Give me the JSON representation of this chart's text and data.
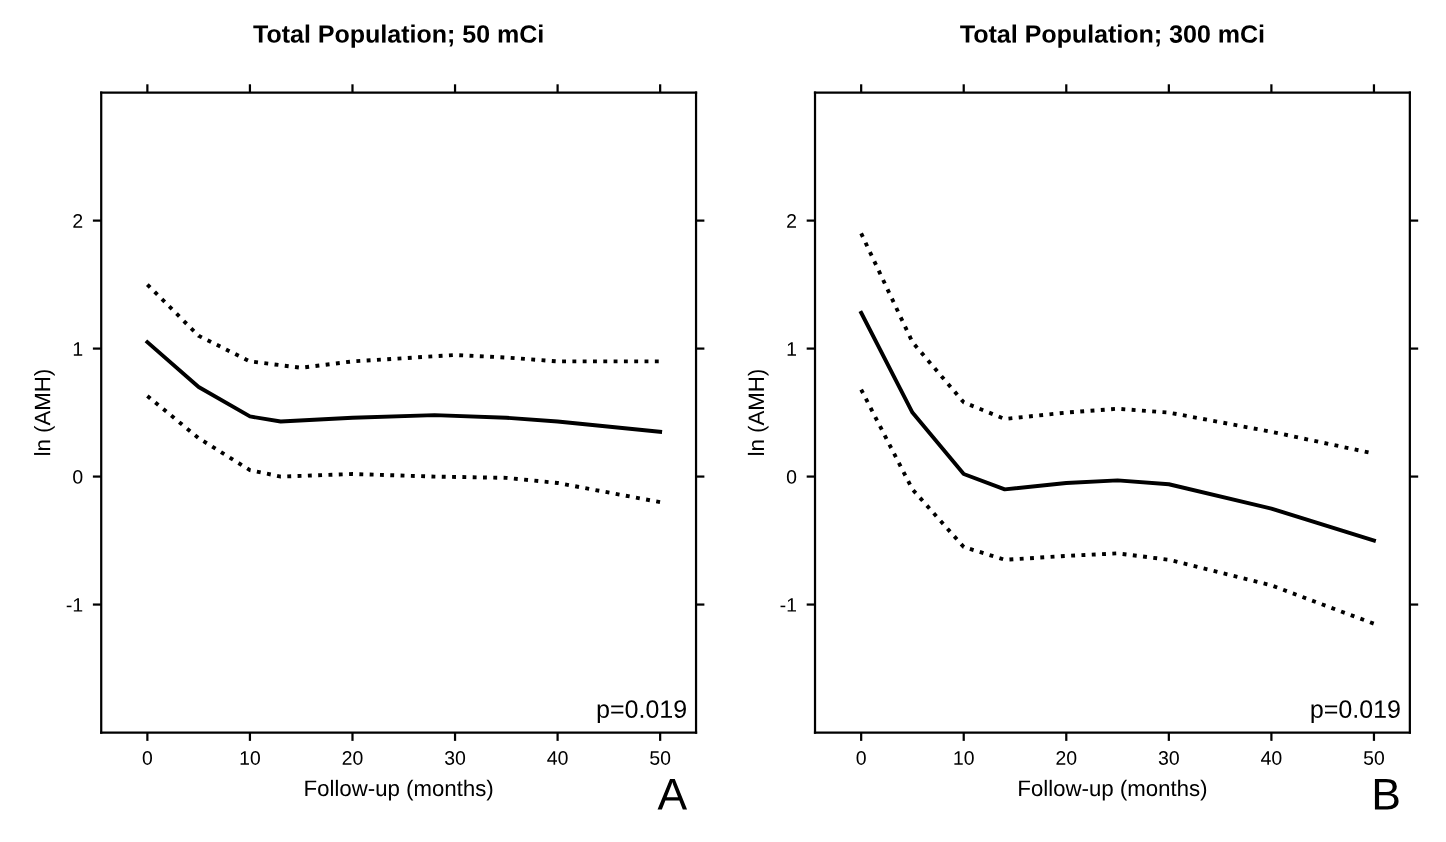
{
  "chart_data": [
    {
      "type": "line",
      "title": "Total Population; 50 mCi",
      "xlabel": "Follow-up (months)",
      "ylabel": "ln (AMH)",
      "annotations": [
        "p=0.019",
        "A"
      ],
      "xlim": [
        -4.5,
        53.5
      ],
      "ylim": [
        -2,
        3
      ],
      "xticks": [
        0,
        10,
        20,
        30,
        40,
        50
      ],
      "yticks": [
        -1,
        0,
        1,
        2
      ],
      "line_style": "solid",
      "series": [
        {
          "color": "#000000",
          "x": [
            0,
            5,
            10,
            13,
            20,
            28,
            35,
            40,
            50
          ],
          "values": [
            1.05,
            0.7,
            0.47,
            0.43,
            0.46,
            0.48,
            0.46,
            0.43,
            0.35
          ]
        },
        {
          "color": "#000000",
          "line_style": "dotted",
          "x": [
            0,
            5,
            10,
            13,
            20,
            28,
            35,
            40,
            50
          ],
          "values": [
            0.63,
            0.3,
            0.05,
            0.0,
            0.02,
            0.0,
            -0.01,
            -0.05,
            -0.2
          ]
        },
        {
          "color": "#000000",
          "line_style": "dotted",
          "x": [
            0,
            5,
            10,
            15,
            20,
            30,
            35,
            40,
            50
          ],
          "values": [
            1.5,
            1.1,
            0.9,
            0.85,
            0.9,
            0.95,
            0.93,
            0.9,
            0.9
          ]
        }
      ]
    },
    {
      "type": "line",
      "title": "Total Population; 300 mCi",
      "xlabel": "Follow-up (months)",
      "ylabel": "ln (AMH)",
      "annotations": [
        "p=0.019",
        "B"
      ],
      "xlim": [
        -4.5,
        53.5
      ],
      "ylim": [
        -2,
        3
      ],
      "xticks": [
        0,
        10,
        20,
        30,
        40,
        50
      ],
      "yticks": [
        -1,
        0,
        1,
        2
      ],
      "line_style": "solid",
      "series": [
        {
          "color": "#000000",
          "x": [
            0,
            5,
            10,
            14,
            20,
            25,
            30,
            40,
            50
          ],
          "values": [
            1.28,
            0.5,
            0.02,
            -0.1,
            -0.05,
            -0.03,
            -0.06,
            -0.25,
            -0.5
          ]
        },
        {
          "color": "#000000",
          "line_style": "dotted",
          "x": [
            0,
            5,
            10,
            14,
            20,
            25,
            30,
            40,
            50
          ],
          "values": [
            0.68,
            -0.1,
            -0.55,
            -0.65,
            -0.62,
            -0.6,
            -0.65,
            -0.85,
            -1.15
          ]
        },
        {
          "color": "#000000",
          "line_style": "dotted",
          "x": [
            0,
            5,
            10,
            14,
            20,
            25,
            30,
            40,
            50
          ],
          "values": [
            1.9,
            1.05,
            0.58,
            0.45,
            0.5,
            0.53,
            0.5,
            0.35,
            0.18
          ]
        }
      ]
    }
  ]
}
